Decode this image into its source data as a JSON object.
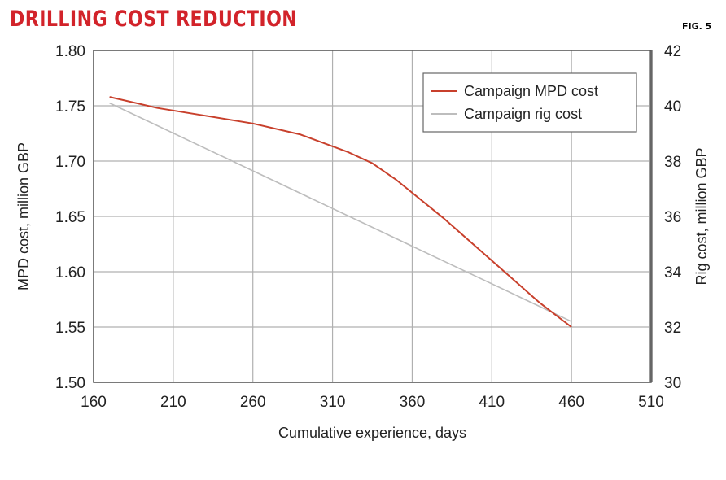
{
  "header": {
    "title": "DRILLING COST REDUCTION",
    "figure_label": "FIG. 5"
  },
  "colors": {
    "title": "#d2232a",
    "mpd_line": "#c8402c",
    "rig_line": "#bdbdbd",
    "grid": "#b0b0b0",
    "axis": "#555555"
  },
  "chart_data": {
    "type": "line",
    "title": "DRILLING COST REDUCTION",
    "xlabel": "Cumulative experience, days",
    "ylabel_left": "MPD cost, million GBP",
    "ylabel_right": "Rig cost, million GBP",
    "xlim": [
      160,
      510
    ],
    "ylim_left": [
      1.5,
      1.8
    ],
    "ylim_right": [
      30,
      42
    ],
    "x_ticks": [
      "160",
      "210",
      "260",
      "310",
      "360",
      "410",
      "460",
      "510"
    ],
    "y_left_ticks": [
      "1.80",
      "1.75",
      "1.70",
      "1.65",
      "1.60",
      "1.55",
      "1.50"
    ],
    "y_right_ticks": [
      "42",
      "40",
      "38",
      "36",
      "34",
      "32",
      "30"
    ],
    "grid": true,
    "legend_position": "top-right",
    "series": [
      {
        "name": "Campaign MPD cost",
        "axis": "left",
        "x": [
          170,
          200,
          230,
          260,
          290,
          320,
          335,
          350,
          380,
          410,
          440,
          460
        ],
        "y": [
          1.758,
          1.748,
          1.741,
          1.734,
          1.724,
          1.708,
          1.698,
          1.683,
          1.648,
          1.61,
          1.572,
          1.55
        ]
      },
      {
        "name": "Campaign rig cost",
        "axis": "right",
        "x": [
          170,
          460
        ],
        "y": [
          40.1,
          32.2
        ]
      }
    ]
  }
}
